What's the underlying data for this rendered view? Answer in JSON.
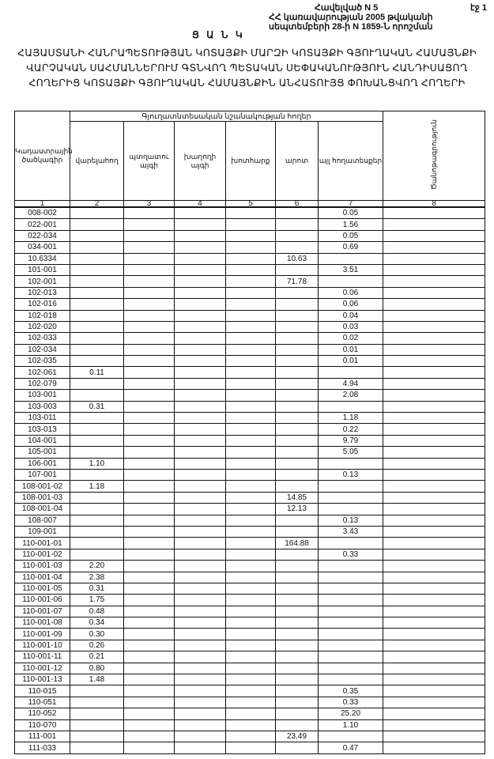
{
  "header": {
    "annex": "Հավելված N 5",
    "government": "ՀՀ կառավարության 2005 թվականի",
    "decision": "սեպտեմբերի 28-ի N 1859-Ն որոշման",
    "page": "էջ 1",
    "list_label": "Ց Ա Ն Կ",
    "title_lines": [
      "ՀԱՅԱՍՏԱՆԻ ՀԱՆՐԱՊԵՏՈՒԹՅԱՆ ԿՈՏԱՅՔԻ ՄԱՐԶԻ ԿՈՏԱՅՔԻ ԳՅՈՒՂԱԿԱՆ ՀԱՄԱՅՆՔԻ",
      "ՎԱՐՉԱԿԱՆ ՍԱՀՄԱՆՆԵՐՈՒՄ ԳՏՆՎՈՂ ՊԵՏԱԿԱՆ ՍԵՓԱԿԱՆՈՒԹՅՈՒՆ ՀԱՆԴԻՍԱՑՈՂ",
      "ՀՈՂԵՐԻՑ ԿՈՏԱՅՔԻ ԳՅՈՒՂԱԿԱՆ ՀԱՄԱՅՆՔԻՆ ԱՆՀԱՏՈՒՅՑ ՓՈԽԱՆՑՎՈՂ ՀՈՂԵՐԻ"
    ]
  },
  "table": {
    "code_header": "Կադաստրային ծածկագիր",
    "group_header": "Գյուղատնտեսական նշանակության հողեր",
    "columns": [
      "վարելահող",
      "պտղատու այգի",
      "խաղողի այգի",
      "խոտհարք",
      "արոտ",
      "այլ հողատեսքեր"
    ],
    "note_header": "Ծանոթագրություն",
    "numbers": [
      "1",
      "2",
      "3",
      "4",
      "5",
      "6",
      "7",
      "8"
    ],
    "rows": [
      [
        "008-002",
        "",
        "",
        "",
        "",
        "",
        "0.05",
        ""
      ],
      [
        "022-001",
        "",
        "",
        "",
        "",
        "",
        "1.56",
        ""
      ],
      [
        "022-034",
        "",
        "",
        "",
        "",
        "",
        "0.05",
        ""
      ],
      [
        "034-001",
        "",
        "",
        "",
        "",
        "",
        "0.69",
        ""
      ],
      [
        "10.6334",
        "",
        "",
        "",
        "",
        "10.63",
        "",
        ""
      ],
      [
        "101-001",
        "",
        "",
        "",
        "",
        "",
        "3.51",
        ""
      ],
      [
        "102-001",
        "",
        "",
        "",
        "",
        "71.78",
        "",
        ""
      ],
      [
        "102-013",
        "",
        "",
        "",
        "",
        "",
        "0.06",
        ""
      ],
      [
        "102-016",
        "",
        "",
        "",
        "",
        "",
        "0.06",
        ""
      ],
      [
        "102-018",
        "",
        "",
        "",
        "",
        "",
        "0.04",
        ""
      ],
      [
        "102-020",
        "",
        "",
        "",
        "",
        "",
        "0.03",
        ""
      ],
      [
        "102-033",
        "",
        "",
        "",
        "",
        "",
        "0.02",
        ""
      ],
      [
        "102-034",
        "",
        "",
        "",
        "",
        "",
        "0.01",
        ""
      ],
      [
        "102-035",
        "",
        "",
        "",
        "",
        "",
        "0.01",
        ""
      ],
      [
        "102-061",
        "0.11",
        "",
        "",
        "",
        "",
        "",
        ""
      ],
      [
        "102-079",
        "",
        "",
        "",
        "",
        "",
        "4.94",
        ""
      ],
      [
        "103-001",
        "",
        "",
        "",
        "",
        "",
        "2.08",
        ""
      ],
      [
        "103-003",
        "0.31",
        "",
        "",
        "",
        "",
        "",
        ""
      ],
      [
        "103-011",
        "",
        "",
        "",
        "",
        "",
        "1.18",
        ""
      ],
      [
        "103-013",
        "",
        "",
        "",
        "",
        "",
        "0.22",
        ""
      ],
      [
        "104-001",
        "",
        "",
        "",
        "",
        "",
        "9.79",
        ""
      ],
      [
        "105-001",
        "",
        "",
        "",
        "",
        "",
        "5.05",
        ""
      ],
      [
        "106-001",
        "1.10",
        "",
        "",
        "",
        "",
        "",
        ""
      ],
      [
        "107-001",
        "",
        "",
        "",
        "",
        "",
        "0.13",
        ""
      ],
      [
        "108-001-02",
        "1.18",
        "",
        "",
        "",
        "",
        "",
        ""
      ],
      [
        "108-001-03",
        "",
        "",
        "",
        "",
        "14.85",
        "",
        ""
      ],
      [
        "108-001-04",
        "",
        "",
        "",
        "",
        "12.13",
        "",
        ""
      ],
      [
        "108-007",
        "",
        "",
        "",
        "",
        "",
        "0.13",
        ""
      ],
      [
        "109-001",
        "",
        "",
        "",
        "",
        "",
        "3.43",
        ""
      ],
      [
        "110-001-01",
        "",
        "",
        "",
        "",
        "164.88",
        "",
        ""
      ],
      [
        "110-001-02",
        "",
        "",
        "",
        "",
        "",
        "0.33",
        ""
      ],
      [
        "110-001-03",
        "2.20",
        "",
        "",
        "",
        "",
        "",
        ""
      ],
      [
        "110-001-04",
        "2.38",
        "",
        "",
        "",
        "",
        "",
        ""
      ],
      [
        "110-001-05",
        "0.31",
        "",
        "",
        "",
        "",
        "",
        ""
      ],
      [
        "110-001-06",
        "1.75",
        "",
        "",
        "",
        "",
        "",
        ""
      ],
      [
        "110-001-07",
        "0.48",
        "",
        "",
        "",
        "",
        "",
        ""
      ],
      [
        "110-001-08",
        "0.34",
        "",
        "",
        "",
        "",
        "",
        ""
      ],
      [
        "110-001-09",
        "0.30",
        "",
        "",
        "",
        "",
        "",
        ""
      ],
      [
        "110-001-10",
        "0.26",
        "",
        "",
        "",
        "",
        "",
        ""
      ],
      [
        "110-001-11",
        "0.21",
        "",
        "",
        "",
        "",
        "",
        ""
      ],
      [
        "110-001-12",
        "0.80",
        "",
        "",
        "",
        "",
        "",
        ""
      ],
      [
        "110-001-13",
        "1.48",
        "",
        "",
        "",
        "",
        "",
        ""
      ],
      [
        "110-015",
        "",
        "",
        "",
        "",
        "",
        "0.35",
        ""
      ],
      [
        "110-051",
        "",
        "",
        "",
        "",
        "",
        "0.33",
        ""
      ],
      [
        "110-052",
        "",
        "",
        "",
        "",
        "",
        "25.20",
        ""
      ],
      [
        "110-070",
        "",
        "",
        "",
        "",
        "",
        "1.10",
        ""
      ],
      [
        "111-001",
        "",
        "",
        "",
        "",
        "23.49",
        "",
        ""
      ],
      [
        "111-033",
        "",
        "",
        "",
        "",
        "",
        "0.47",
        ""
      ]
    ]
  }
}
